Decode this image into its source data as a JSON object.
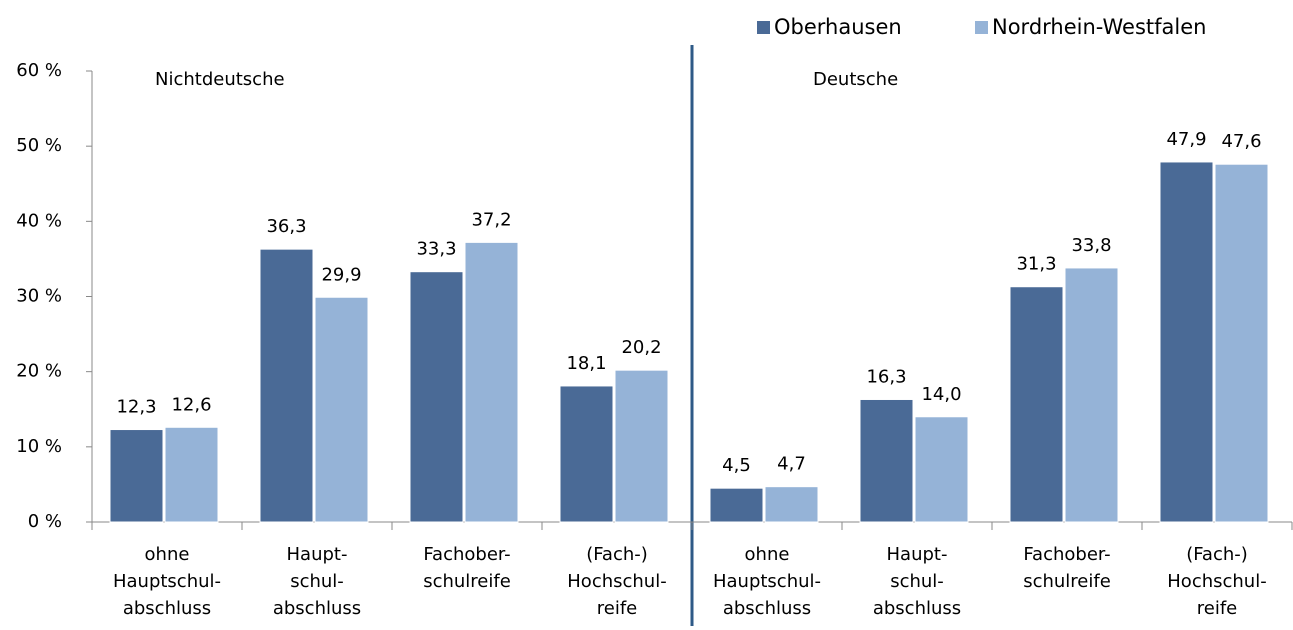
{
  "chart_data": {
    "type": "bar",
    "categories": [
      [
        "ohne",
        "Hauptschul-",
        "abschluss"
      ],
      [
        "Haupt-",
        "schul-",
        "abschluss"
      ],
      [
        "Fachober-",
        "schulreife"
      ],
      [
        "(Fach-)",
        "Hochschul-",
        "reife"
      ],
      [
        "ohne",
        "Hauptschul-",
        "abschluss"
      ],
      [
        "Haupt-",
        "schul-",
        "abschluss"
      ],
      [
        "Fachober-",
        "schulreife"
      ],
      [
        "(Fach-)",
        "Hochschul-",
        "reife"
      ]
    ],
    "series": [
      {
        "name": "Oberhausen",
        "color": "#4a6a96",
        "values": [
          12.3,
          36.3,
          33.3,
          18.1,
          4.5,
          16.3,
          31.3,
          47.9
        ],
        "value_labels": [
          "12,3",
          "36,3",
          "33,3",
          "18,1",
          "4,5",
          "16,3",
          "31,3",
          "47,9"
        ]
      },
      {
        "name": "Nordrhein-Westfalen",
        "color": "#95b3d7",
        "values": [
          12.6,
          29.9,
          37.2,
          20.2,
          4.7,
          14.0,
          33.8,
          47.6
        ],
        "value_labels": [
          "12,6",
          "29,9",
          "37,2",
          "20,2",
          "4,7",
          "14,0",
          "33,8",
          "47,6"
        ]
      }
    ],
    "annotations": [
      "Nichtdeutsche",
      "Deutsche"
    ],
    "ylim": [
      0,
      60
    ],
    "yticks": [
      {
        "value": 0,
        "label": "0 %"
      },
      {
        "value": 10,
        "label": "10 %"
      },
      {
        "value": 20,
        "label": "20 %"
      },
      {
        "value": 30,
        "label": "30 %"
      },
      {
        "value": 40,
        "label": "40 %"
      },
      {
        "value": 50,
        "label": "50 %"
      },
      {
        "value": 60,
        "label": "60 %"
      }
    ],
    "legend": "top-right"
  }
}
